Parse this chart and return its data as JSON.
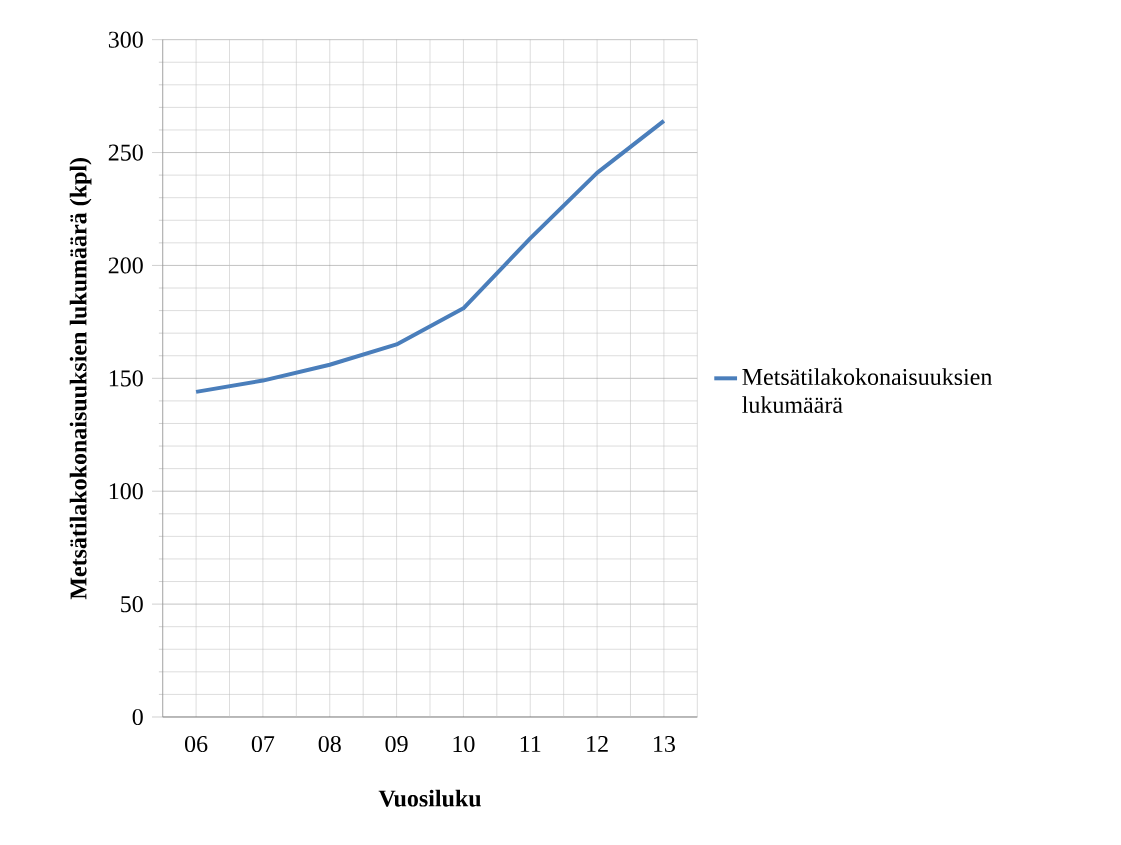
{
  "chart_data": {
    "type": "line",
    "xlabel": "Vuosiluku",
    "ylabel": "Metsätilakokonaisuuksien lukumäärä (kpl)",
    "categories": [
      "06",
      "07",
      "08",
      "09",
      "10",
      "11",
      "12",
      "13"
    ],
    "series": [
      {
        "name": "Metsätilakokonaisuuksien lukumäärä",
        "color": "#4a7ebb",
        "values": [
          144,
          149,
          156,
          165,
          181,
          212,
          241,
          264
        ]
      }
    ],
    "ylim": [
      0,
      300
    ],
    "yticks": [
      0,
      50,
      100,
      150,
      200,
      250,
      300
    ],
    "grid": true,
    "legend": "right",
    "marker": "none",
    "line_style": "solid"
  }
}
